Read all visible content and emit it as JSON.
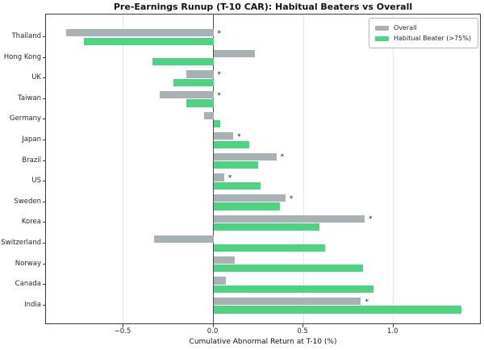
{
  "title": "Pre-Earnings Runup (T-10 CAR): Habitual Beaters vs Overall",
  "xlabel": "Cumulative Abnormal Return at T-10 (%)",
  "legend": {
    "position": "upper-right",
    "items": [
      {
        "label": "Overall",
        "color": "#a8b1b3"
      },
      {
        "label": "Habitual Beater (>75%)",
        "color": "#4fd282"
      }
    ]
  },
  "colors": {
    "overall_bar": "#a8b1b3",
    "habitual_bar": "#4fd282",
    "zero_line": "#4a4a4a",
    "gridline": "#e6e6e6",
    "spine": "#3a3a3a"
  },
  "significance_marker": "*",
  "chart_data": {
    "type": "bar",
    "orientation": "horizontal",
    "title": "Pre-Earnings Runup (T-10 CAR): Habitual Beaters vs Overall",
    "xlabel": "Cumulative Abnormal Return at T-10 (%)",
    "ylabel": "",
    "grid": "vertical, light gray",
    "legend_position": "upper right",
    "xlim": [
      -0.93,
      1.49
    ],
    "x_ticks": [
      {
        "value": -0.5,
        "label": "−0.5"
      },
      {
        "value": 0.0,
        "label": "0.0"
      },
      {
        "value": 0.5,
        "label": "0.5"
      },
      {
        "value": 1.0,
        "label": "1.0"
      }
    ],
    "zero_line": true,
    "categories": [
      "Thailand",
      "Hong Kong",
      "UK",
      "Taiwan",
      "Germany",
      "Japan",
      "Brazil",
      "US",
      "Sweden",
      "Korea",
      "Switzerland",
      "Norway",
      "Canada",
      "India"
    ],
    "series": [
      {
        "name": "Overall",
        "color": "#a8b1b3",
        "values": [
          -0.82,
          0.23,
          -0.15,
          -0.3,
          -0.05,
          0.11,
          0.35,
          0.06,
          0.4,
          0.84,
          -0.33,
          0.12,
          0.07,
          0.82
        ]
      },
      {
        "name": "Habitual Beater (>75%)",
        "color": "#4fd282",
        "values": [
          -0.72,
          -0.34,
          -0.22,
          -0.15,
          0.04,
          0.2,
          0.25,
          0.26,
          0.37,
          0.59,
          0.62,
          0.83,
          0.89,
          1.38
        ]
      }
    ],
    "overall_significant": [
      true,
      false,
      true,
      true,
      false,
      true,
      true,
      true,
      true,
      true,
      false,
      false,
      false,
      true
    ],
    "annotation_note": "* marks significance next to the Overall bar"
  }
}
